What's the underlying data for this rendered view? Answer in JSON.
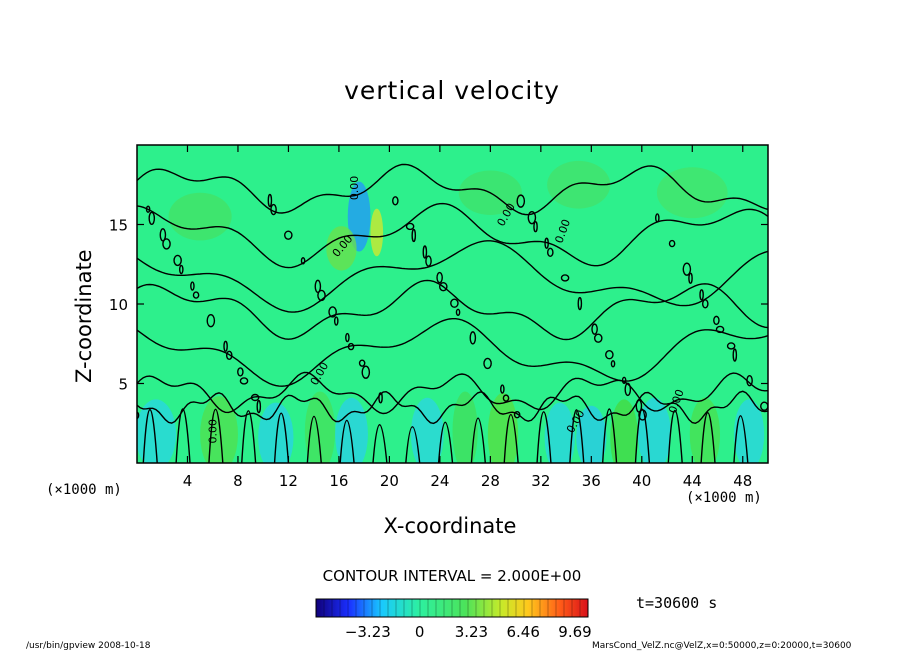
{
  "chart_data": {
    "type": "heatmap",
    "title": "vertical velocity",
    "xlabel": "X-coordinate",
    "ylabel": "Z-coordinate",
    "x_unit": "(×1000 m)",
    "y_unit": "(×1000 m)",
    "xlim": [
      0,
      50
    ],
    "ylim": [
      0,
      20
    ],
    "x_ticks": [
      4,
      8,
      12,
      16,
      20,
      24,
      28,
      32,
      36,
      40,
      44,
      48
    ],
    "y_ticks": [
      5,
      10,
      15
    ],
    "contour_interval": "CONTOUR INTERVAL = 2.000E+00",
    "contour_labels": [
      "0.00",
      "0.00",
      "0.00",
      "0.00",
      "0.00",
      "0.00",
      "0.00",
      "0.00"
    ],
    "colorbar": {
      "ticks": [
        "−3.23",
        "0",
        "3.23",
        "6.46",
        "9.69"
      ],
      "min": -6.46,
      "max": 10.5,
      "colormap": "rainbow"
    },
    "time_label": "t=30600 s",
    "background_color": "#2df08c"
  },
  "footer": {
    "left": "/usr/bin/gpview  2008-10-18",
    "right": "MarsCond_VelZ.nc@VelZ,x=0:50000,z=0:20000,t=30600"
  }
}
